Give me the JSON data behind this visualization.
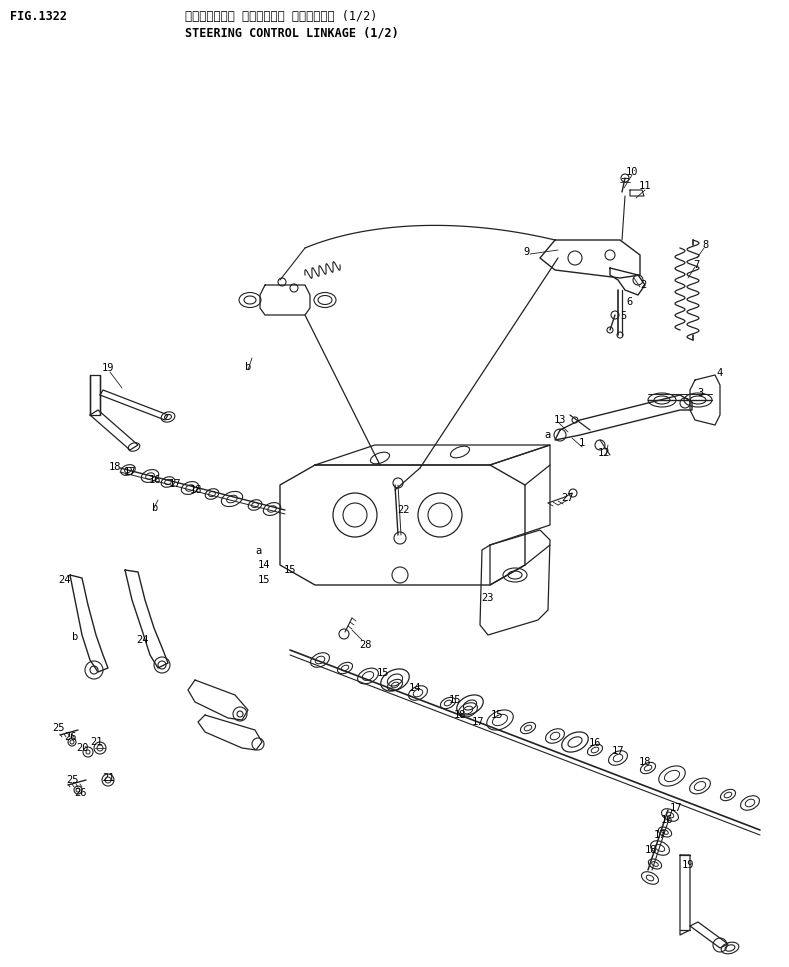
{
  "title_jp": "ステアリング・ コントロール リンケージ・ (1/2)",
  "title_en": "STEERING CONTROL LINKAGE (1/2)",
  "fig_number": "FIG.1322",
  "bg_color": "#ffffff",
  "line_color": "#222222",
  "text_color": "#000000",
  "label_fontsize": 7.5,
  "title_fontsize": 8.5,
  "fig_fontsize": 8.5
}
